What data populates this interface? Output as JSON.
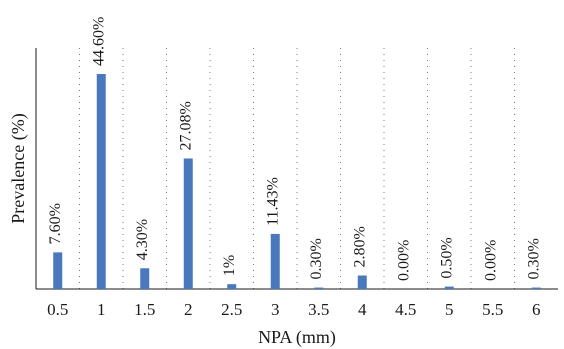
{
  "chart_data": {
    "type": "bar",
    "categories": [
      "0.5",
      "1",
      "1.5",
      "2",
      "2.5",
      "3",
      "3.5",
      "4",
      "4.5",
      "5",
      "5.5",
      "6"
    ],
    "values": [
      7.6,
      44.6,
      4.3,
      27.08,
      1,
      11.43,
      0.3,
      2.8,
      0.0,
      0.5,
      0.0,
      0.3
    ],
    "data_labels": [
      "7.60%",
      "44.60%",
      "4.30%",
      "27.08%",
      "1%",
      "11.43%",
      "0.30%",
      "2.80%",
      "0.00%",
      "0.50%",
      "0.00%",
      "0.30%"
    ],
    "xlabel": "NPA (mm)",
    "ylabel": "Prevalence (%)",
    "ylim": [
      0,
      50
    ],
    "grid": "vertical dotted",
    "bar_color": "#4a78bd"
  }
}
